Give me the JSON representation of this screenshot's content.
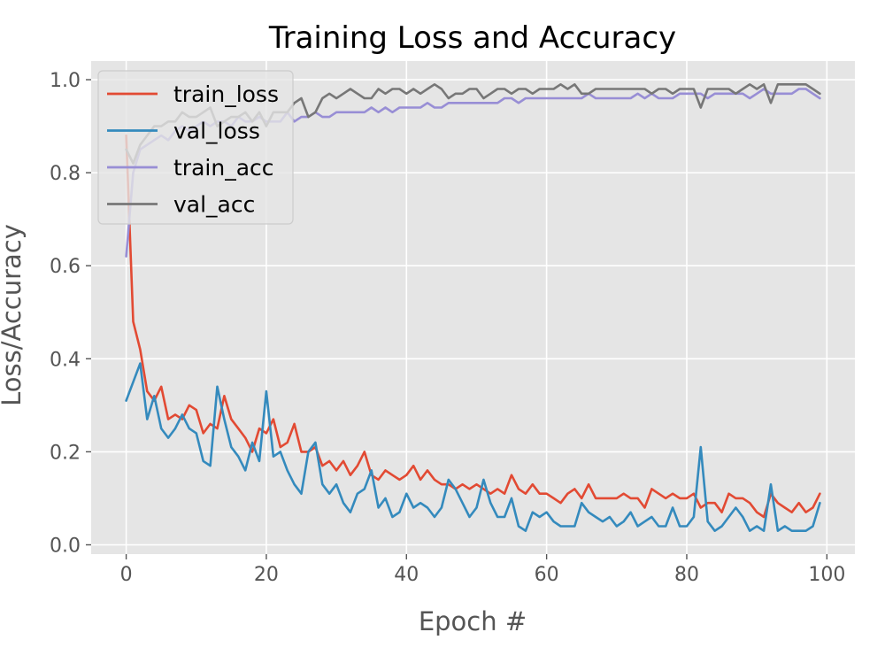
{
  "chart_data": {
    "type": "line",
    "title": "Training Loss and Accuracy",
    "xlabel": "Epoch #",
    "ylabel": "Loss/Accuracy",
    "xlim": [
      -5,
      104
    ],
    "ylim": [
      -0.02,
      1.04
    ],
    "xticks": [
      0,
      20,
      40,
      60,
      80,
      100
    ],
    "yticks": [
      0.0,
      0.2,
      0.4,
      0.6,
      0.8,
      1.0
    ],
    "xtick_labels": [
      "0",
      "20",
      "40",
      "60",
      "80",
      "100"
    ],
    "ytick_labels": [
      "0.0",
      "0.2",
      "0.4",
      "0.6",
      "0.8",
      "1.0"
    ],
    "grid": true,
    "style": "ggplot",
    "legend_position": "upper-left",
    "x": [
      0,
      1,
      2,
      3,
      4,
      5,
      6,
      7,
      8,
      9,
      10,
      11,
      12,
      13,
      14,
      15,
      16,
      17,
      18,
      19,
      20,
      21,
      22,
      23,
      24,
      25,
      26,
      27,
      28,
      29,
      30,
      31,
      32,
      33,
      34,
      35,
      36,
      37,
      38,
      39,
      40,
      41,
      42,
      43,
      44,
      45,
      46,
      47,
      48,
      49,
      50,
      51,
      52,
      53,
      54,
      55,
      56,
      57,
      58,
      59,
      60,
      61,
      62,
      63,
      64,
      65,
      66,
      67,
      68,
      69,
      70,
      71,
      72,
      73,
      74,
      75,
      76,
      77,
      78,
      79,
      80,
      81,
      82,
      83,
      84,
      85,
      86,
      87,
      88,
      89,
      90,
      91,
      92,
      93,
      94,
      95,
      96,
      97,
      98,
      99
    ],
    "series": [
      {
        "name": "train_loss",
        "color": "#E24A33",
        "values": [
          0.88,
          0.48,
          0.42,
          0.33,
          0.31,
          0.34,
          0.27,
          0.28,
          0.27,
          0.3,
          0.29,
          0.24,
          0.26,
          0.25,
          0.32,
          0.27,
          0.25,
          0.23,
          0.2,
          0.25,
          0.24,
          0.27,
          0.21,
          0.22,
          0.26,
          0.2,
          0.2,
          0.21,
          0.17,
          0.18,
          0.16,
          0.18,
          0.15,
          0.17,
          0.2,
          0.15,
          0.14,
          0.16,
          0.15,
          0.14,
          0.15,
          0.17,
          0.14,
          0.16,
          0.14,
          0.13,
          0.13,
          0.12,
          0.13,
          0.12,
          0.13,
          0.12,
          0.11,
          0.12,
          0.11,
          0.15,
          0.12,
          0.11,
          0.13,
          0.11,
          0.11,
          0.1,
          0.09,
          0.11,
          0.12,
          0.1,
          0.13,
          0.1,
          0.1,
          0.1,
          0.1,
          0.11,
          0.1,
          0.1,
          0.08,
          0.12,
          0.11,
          0.1,
          0.11,
          0.1,
          0.1,
          0.11,
          0.08,
          0.09,
          0.09,
          0.07,
          0.11,
          0.1,
          0.1,
          0.09,
          0.07,
          0.06,
          0.11,
          0.09,
          0.08,
          0.07,
          0.09,
          0.07,
          0.08,
          0.11
        ]
      },
      {
        "name": "val_loss",
        "color": "#348ABD",
        "values": [
          0.31,
          0.35,
          0.39,
          0.27,
          0.32,
          0.25,
          0.23,
          0.25,
          0.28,
          0.25,
          0.24,
          0.18,
          0.17,
          0.34,
          0.27,
          0.21,
          0.19,
          0.16,
          0.22,
          0.18,
          0.33,
          0.19,
          0.2,
          0.16,
          0.13,
          0.11,
          0.2,
          0.22,
          0.13,
          0.11,
          0.13,
          0.09,
          0.07,
          0.11,
          0.12,
          0.16,
          0.08,
          0.1,
          0.06,
          0.07,
          0.11,
          0.08,
          0.09,
          0.08,
          0.06,
          0.08,
          0.14,
          0.12,
          0.09,
          0.06,
          0.08,
          0.14,
          0.09,
          0.06,
          0.06,
          0.1,
          0.04,
          0.03,
          0.07,
          0.06,
          0.07,
          0.05,
          0.04,
          0.04,
          0.04,
          0.09,
          0.07,
          0.06,
          0.05,
          0.06,
          0.04,
          0.05,
          0.07,
          0.04,
          0.05,
          0.06,
          0.04,
          0.04,
          0.08,
          0.04,
          0.04,
          0.06,
          0.21,
          0.05,
          0.03,
          0.04,
          0.06,
          0.08,
          0.06,
          0.03,
          0.04,
          0.03,
          0.13,
          0.03,
          0.04,
          0.03,
          0.03,
          0.03,
          0.04,
          0.09
        ]
      },
      {
        "name": "train_acc",
        "color": "#988ED5",
        "values": [
          0.62,
          0.8,
          0.85,
          0.86,
          0.87,
          0.88,
          0.87,
          0.89,
          0.9,
          0.89,
          0.9,
          0.91,
          0.9,
          0.91,
          0.91,
          0.9,
          0.92,
          0.91,
          0.91,
          0.92,
          0.91,
          0.91,
          0.91,
          0.93,
          0.91,
          0.92,
          0.92,
          0.93,
          0.92,
          0.92,
          0.93,
          0.93,
          0.93,
          0.93,
          0.93,
          0.94,
          0.93,
          0.94,
          0.93,
          0.94,
          0.94,
          0.94,
          0.94,
          0.95,
          0.94,
          0.94,
          0.95,
          0.95,
          0.95,
          0.95,
          0.95,
          0.95,
          0.95,
          0.95,
          0.96,
          0.96,
          0.95,
          0.96,
          0.96,
          0.96,
          0.96,
          0.96,
          0.96,
          0.96,
          0.96,
          0.96,
          0.97,
          0.96,
          0.96,
          0.96,
          0.96,
          0.96,
          0.96,
          0.97,
          0.96,
          0.97,
          0.96,
          0.96,
          0.96,
          0.97,
          0.97,
          0.97,
          0.97,
          0.96,
          0.97,
          0.97,
          0.97,
          0.97,
          0.97,
          0.96,
          0.97,
          0.98,
          0.97,
          0.97,
          0.97,
          0.97,
          0.98,
          0.98,
          0.97,
          0.96
        ]
      },
      {
        "name": "val_acc",
        "color": "#777777",
        "values": [
          0.85,
          0.82,
          0.86,
          0.88,
          0.9,
          0.9,
          0.91,
          0.91,
          0.93,
          0.92,
          0.92,
          0.93,
          0.94,
          0.9,
          0.91,
          0.92,
          0.92,
          0.93,
          0.91,
          0.93,
          0.9,
          0.93,
          0.93,
          0.93,
          0.95,
          0.96,
          0.92,
          0.93,
          0.96,
          0.97,
          0.96,
          0.97,
          0.98,
          0.97,
          0.96,
          0.96,
          0.98,
          0.97,
          0.98,
          0.98,
          0.97,
          0.98,
          0.97,
          0.98,
          0.99,
          0.98,
          0.96,
          0.97,
          0.97,
          0.98,
          0.98,
          0.96,
          0.97,
          0.98,
          0.98,
          0.97,
          0.98,
          0.98,
          0.97,
          0.98,
          0.98,
          0.98,
          0.99,
          0.98,
          0.99,
          0.97,
          0.97,
          0.98,
          0.98,
          0.98,
          0.98,
          0.98,
          0.98,
          0.98,
          0.98,
          0.97,
          0.98,
          0.98,
          0.97,
          0.98,
          0.98,
          0.98,
          0.94,
          0.98,
          0.98,
          0.98,
          0.98,
          0.97,
          0.98,
          0.99,
          0.98,
          0.99,
          0.95,
          0.99,
          0.99,
          0.99,
          0.99,
          0.99,
          0.98,
          0.97
        ]
      }
    ]
  }
}
